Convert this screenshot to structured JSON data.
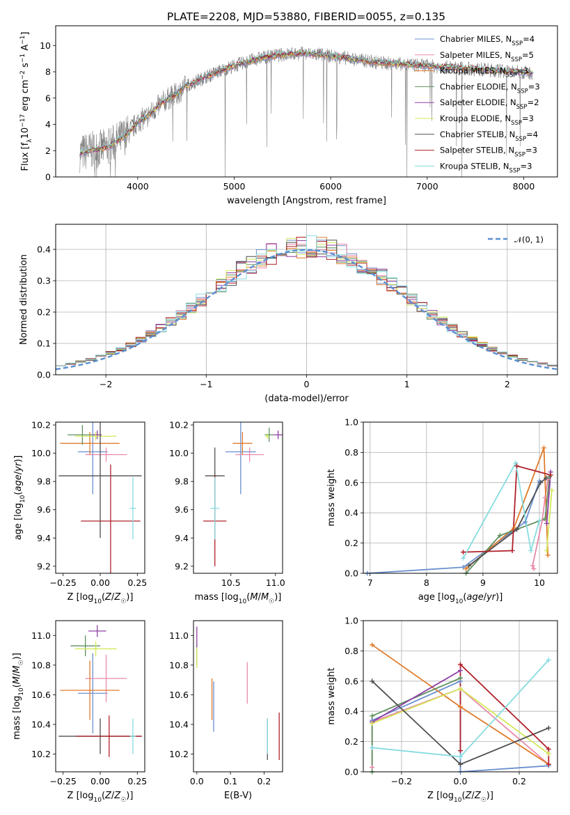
{
  "figure": {
    "title": "PLATE=2208, MJD=53880, FIBERID=0055, z=0.135"
  },
  "models": [
    {
      "name": "Chabrier MILES",
      "nssp": "4",
      "color": "#6a8fcf"
    },
    {
      "name": "Salpeter MILES",
      "nssp": "5",
      "color": "#e88aaa"
    },
    {
      "name": "Kroupa MILES",
      "nssp": "3",
      "color": "#e07b2a"
    },
    {
      "name": "Chabrier ELODIE",
      "nssp": "3",
      "color": "#5f8f5f"
    },
    {
      "name": "Salpeter ELODIE",
      "nssp": "2",
      "color": "#8e3fa3"
    },
    {
      "name": "Kroupa ELODIE",
      "nssp": "3",
      "color": "#d4e85a"
    },
    {
      "name": "Chabrier STELIB",
      "nssp": "4",
      "color": "#4f4f4f"
    },
    {
      "name": "Salpeter STELIB",
      "nssp": "3",
      "color": "#b0202a"
    },
    {
      "name": "Kroupa STELIB",
      "nssp": "3",
      "color": "#86dce0"
    }
  ],
  "legend_nssp_label": "N",
  "legend_nssp_sub": "SSP",
  "chart_data": [
    {
      "id": "spectrum",
      "type": "line",
      "title": "PLATE=2208, MJD=53880, FIBERID=0055, z=0.135",
      "xlabel": "wavelength [Angstrom, rest frame]",
      "ylabel": "Flux [f_λ 10^-17 erg cm^-2 s^-1 A^-1]",
      "xlim": [
        3150,
        8350
      ],
      "ylim": [
        0,
        11.5
      ],
      "xticks": [
        4000,
        5000,
        6000,
        7000,
        8000
      ],
      "yticks": [
        0,
        2,
        4,
        6,
        8,
        10
      ],
      "data_color": "#808080",
      "continuum": {
        "x": [
          3400,
          3500,
          3600,
          3700,
          3800,
          3900,
          4000,
          4100,
          4200,
          4300,
          4400,
          4500,
          4700,
          4900,
          5100,
          5300,
          5500,
          5700,
          5900,
          6100,
          6300,
          6500,
          6700,
          6900,
          7100,
          7300,
          7500,
          7700,
          7900,
          8100
        ],
        "y": [
          1.8,
          2.0,
          2.1,
          2.3,
          2.8,
          3.3,
          4.2,
          4.6,
          5.3,
          5.9,
          6.3,
          6.9,
          7.6,
          8.2,
          8.7,
          9.1,
          9.3,
          9.4,
          9.3,
          9.1,
          8.9,
          8.7,
          8.6,
          8.5,
          8.4,
          8.3,
          8.2,
          8.1,
          8.0,
          7.9
        ]
      },
      "grid": false,
      "legend_position": "top-right"
    },
    {
      "id": "residuals",
      "type": "histogram",
      "xlabel": "(data-model)/error",
      "ylabel": "Normed distribution",
      "xlim": [
        -2.5,
        2.5
      ],
      "ylim": [
        0,
        0.48
      ],
      "xticks": [
        -2,
        -1,
        0,
        1,
        2
      ],
      "yticks": [
        0.0,
        0.1,
        0.2,
        0.3,
        0.4
      ],
      "bin_width": 0.1,
      "reference_curve": {
        "label": "𝒩(0, 1)",
        "mean": 0,
        "sigma": 1,
        "color": "#5a8fd0"
      },
      "grid": true,
      "legend_position": "top-right"
    },
    {
      "id": "age-vs-Z",
      "type": "errorbar",
      "xlabel": "Z [log10(Z/Z☉)]",
      "ylabel": "age [log10(age/yr)]",
      "xlim": [
        -0.3,
        0.3
      ],
      "ylim": [
        9.15,
        10.22
      ],
      "xticks": [
        -0.25,
        0.0,
        0.25
      ],
      "yticks": [
        9.2,
        9.4,
        9.6,
        9.8,
        10.0,
        10.2
      ],
      "points": [
        {
          "x": -0.05,
          "xerr": 0.1,
          "y": 10.01,
          "yerr": 0.3
        },
        {
          "x": 0.04,
          "xerr": 0.14,
          "y": 9.99,
          "yerr": 0.05
        },
        {
          "x": -0.07,
          "xerr": 0.2,
          "y": 10.07,
          "yerr": 0.08
        },
        {
          "x": -0.12,
          "xerr": 0.1,
          "y": 10.13,
          "yerr": 0.07
        },
        {
          "x": -0.02,
          "xerr": 0.03,
          "y": 10.13,
          "yerr": 0.03
        },
        {
          "x": -0.03,
          "xerr": 0.14,
          "y": 10.12,
          "yerr": 0.03
        },
        {
          "x": 0.0,
          "xerr": 0.28,
          "y": 9.84,
          "yerr": 0.44
        },
        {
          "x": 0.07,
          "xerr": 0.2,
          "y": 9.52,
          "yerr": 0.4
        },
        {
          "x": 0.22,
          "xerr": 0.02,
          "y": 9.61,
          "yerr": 0.22
        }
      ],
      "grid": false
    },
    {
      "id": "age-vs-mass",
      "type": "errorbar",
      "xlabel": "mass [log10(M/M☉)]",
      "ylabel": "",
      "xlim": [
        10.08,
        11.08
      ],
      "ylim": [
        9.15,
        10.22
      ],
      "xticks": [
        10.5,
        11.0
      ],
      "yticks": [
        9.2,
        9.4,
        9.6,
        9.8,
        10.0,
        10.2
      ],
      "points": [
        {
          "x": 10.61,
          "xerr": 0.17,
          "y": 10.01,
          "yerr": 0.3
        },
        {
          "x": 10.71,
          "xerr": 0.16,
          "y": 9.99,
          "yerr": 0.05
        },
        {
          "x": 10.63,
          "xerr": 0.11,
          "y": 10.07,
          "yerr": 0.08
        },
        {
          "x": 10.93,
          "xerr": 0.05,
          "y": 10.13,
          "yerr": 0.05
        },
        {
          "x": 11.03,
          "xerr": 0.05,
          "y": 10.13,
          "yerr": 0.03
        },
        {
          "x": 10.91,
          "xerr": 0.02,
          "y": 10.12,
          "yerr": 0.02
        },
        {
          "x": 10.32,
          "xerr": 0.11,
          "y": 9.84,
          "yerr": 0.2
        },
        {
          "x": 10.32,
          "xerr": 0.13,
          "y": 9.52,
          "yerr": 0.32
        },
        {
          "x": 10.32,
          "xerr": 0.05,
          "y": 9.61,
          "yerr": 0.22
        }
      ],
      "grid": false
    },
    {
      "id": "weights-vs-age",
      "type": "line",
      "xlabel": "age [log10(age/yr)]",
      "ylabel": "mass weight",
      "xlim": [
        6.88,
        10.32
      ],
      "ylim": [
        0,
        1.0
      ],
      "xticks": [
        7,
        8,
        9,
        10
      ],
      "yticks": [
        0.0,
        0.2,
        0.4,
        0.6,
        0.8,
        1.0
      ],
      "series": [
        {
          "x": [
            6.95,
            8.65,
            9.75,
            10.0
          ],
          "y": [
            0.0,
            0.04,
            0.34,
            0.61
          ]
        },
        {
          "x": [
            9.9,
            9.88,
            10.05,
            10.1,
            10.15
          ],
          "y": [
            0.03,
            0.05,
            0.35,
            0.5,
            0.62
          ]
        },
        {
          "x": [
            8.7,
            9.55,
            10.08,
            10.15
          ],
          "y": [
            0.03,
            0.3,
            0.83,
            0.12
          ]
        },
        {
          "x": [
            8.7,
            9.3,
            10.1,
            10.18
          ],
          "y": [
            0.0,
            0.25,
            0.36,
            0.64
          ]
        },
        {
          "x": [
            10.13,
            10.2
          ],
          "y": [
            0.33,
            0.67
          ]
        },
        {
          "x": [
            10.13,
            10.22
          ],
          "y": [
            0.15,
            0.55
          ]
        },
        {
          "x": [
            8.75,
            9.6,
            10.02,
            10.12
          ],
          "y": [
            0.05,
            0.29,
            0.6,
            0.63
          ]
        },
        {
          "x": [
            8.65,
            9.52,
            9.6,
            10.2
          ],
          "y": [
            0.14,
            0.15,
            0.71,
            0.65
          ]
        },
        {
          "x": [
            8.65,
            9.58,
            9.85,
            10.0
          ],
          "y": [
            0.1,
            0.73,
            0.15,
            0.35
          ]
        }
      ],
      "grid": true
    },
    {
      "id": "mass-vs-Z",
      "type": "errorbar",
      "xlabel": "Z [log10(Z/Z☉)]",
      "ylabel": "mass [log10(M/M☉)]",
      "xlim": [
        -0.3,
        0.3
      ],
      "ylim": [
        10.08,
        11.1
      ],
      "xticks": [
        -0.25,
        0.0,
        0.25
      ],
      "yticks": [
        10.2,
        10.4,
        10.6,
        10.8,
        11.0
      ],
      "points": [
        {
          "x": -0.05,
          "xerr": 0.1,
          "y": 10.61,
          "yerr": 0.27
        },
        {
          "x": 0.04,
          "xerr": 0.14,
          "y": 10.71,
          "yerr": 0.16
        },
        {
          "x": -0.07,
          "xerr": 0.2,
          "y": 10.63,
          "yerr": 0.2
        },
        {
          "x": -0.1,
          "xerr": 0.1,
          "y": 10.93,
          "yerr": 0.07
        },
        {
          "x": -0.02,
          "xerr": 0.06,
          "y": 11.03,
          "yerr": 0.04
        },
        {
          "x": -0.03,
          "xerr": 0.14,
          "y": 10.91,
          "yerr": 0.05
        },
        {
          "x": 0.0,
          "xerr": 0.28,
          "y": 10.32,
          "yerr": 0.12
        },
        {
          "x": 0.06,
          "xerr": 0.22,
          "y": 10.32,
          "yerr": 0.14
        },
        {
          "x": 0.22,
          "xerr": 0.02,
          "y": 10.32,
          "yerr": 0.12
        }
      ],
      "grid": false
    },
    {
      "id": "mass-vs-EBV",
      "type": "errorbar",
      "xlabel": "E(B-V)",
      "ylabel": "",
      "xlim": [
        -0.01,
        0.255
      ],
      "ylim": [
        10.08,
        11.1
      ],
      "xticks": [
        0.0,
        0.1,
        0.2
      ],
      "yticks": [
        10.2,
        10.4,
        10.6,
        10.8,
        11.0
      ],
      "points": [
        {
          "x": 0.05,
          "xerr": 0,
          "y": 10.52,
          "yerr": 0.17
        },
        {
          "x": 0.15,
          "xerr": 0,
          "y": 10.68,
          "yerr": 0.14
        },
        {
          "x": 0.045,
          "xerr": 0,
          "y": 10.57,
          "yerr": 0.14
        },
        {
          "x": 0.0,
          "xerr": 0,
          "y": 10.87,
          "yerr": 0.07
        },
        {
          "x": 0.0,
          "xerr": 0,
          "y": 10.99,
          "yerr": 0.07
        },
        {
          "x": 0.0,
          "xerr": 0,
          "y": 10.85,
          "yerr": 0.07
        },
        {
          "x": 0.21,
          "xerr": 0,
          "y": 10.3,
          "yerr": 0.14
        },
        {
          "x": 0.245,
          "xerr": 0,
          "y": 10.32,
          "yerr": 0.16
        },
        {
          "x": 0.21,
          "xerr": 0,
          "y": 10.32,
          "yerr": 0.12
        }
      ],
      "grid": false
    },
    {
      "id": "weights-vs-Z",
      "type": "line",
      "xlabel": "Z [log10(Z/Z☉)]",
      "ylabel": "mass weight",
      "xlim": [
        -0.33,
        0.33
      ],
      "ylim": [
        0,
        1.0
      ],
      "xticks": [
        -0.2,
        0.0,
        0.2
      ],
      "yticks": [
        0.0,
        0.2,
        0.4,
        0.6,
        0.8,
        1.0
      ],
      "series": [
        {
          "x": [
            -0.3,
            0.0,
            0.0,
            0.3
          ],
          "y": [
            0.34,
            0.6,
            0.0,
            0.04
          ]
        },
        {
          "x": [
            -0.3,
            -0.3,
            0.0,
            0.3
          ],
          "y": [
            0.03,
            0.33,
            0.55,
            0.05
          ]
        },
        {
          "x": [
            -0.3,
            0.0,
            0.0,
            0.3
          ],
          "y": [
            0.84,
            0.43,
            0.43,
            0.05
          ]
        },
        {
          "x": [
            -0.3,
            -0.3,
            0.0,
            0.0
          ],
          "y": [
            0.0,
            0.37,
            0.62,
            0.62
          ]
        },
        {
          "x": [
            -0.3,
            0.0
          ],
          "y": [
            0.33,
            0.67
          ]
        },
        {
          "x": [
            -0.3,
            0.0,
            0.3
          ],
          "y": [
            0.32,
            0.55,
            0.12
          ]
        },
        {
          "x": [
            -0.3,
            0.0,
            0.0,
            0.3
          ],
          "y": [
            0.6,
            0.05,
            0.05,
            0.29
          ]
        },
        {
          "x": [
            0.0,
            0.0,
            0.3,
            0.3
          ],
          "y": [
            0.14,
            0.71,
            0.15,
            0.05
          ]
        },
        {
          "x": [
            -0.3,
            0.0,
            0.0,
            0.3
          ],
          "y": [
            0.16,
            0.1,
            0.1,
            0.74
          ]
        }
      ],
      "grid": true
    }
  ]
}
